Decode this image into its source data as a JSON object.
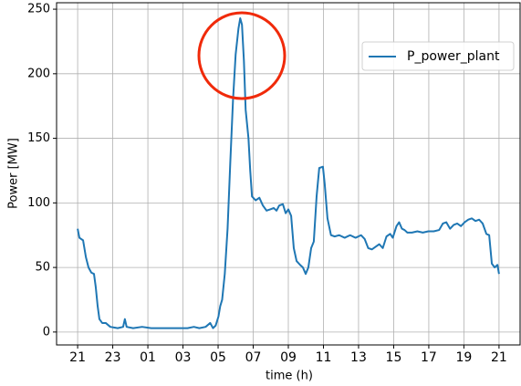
{
  "chart_data": {
    "type": "line",
    "xlabel": "time (h)",
    "ylabel": "Power [MW]",
    "x": [
      21.0,
      21.1,
      21.31,
      21.47,
      21.62,
      21.78,
      21.93,
      22.03,
      22.14,
      22.24,
      22.4,
      22.6,
      22.86,
      23.28,
      23.59,
      23.69,
      23.79,
      24.16,
      24.67,
      25.19,
      25.71,
      26.23,
      26.74,
      27.26,
      27.62,
      27.93,
      28.29,
      28.55,
      28.71,
      28.86,
      29.02,
      29.12,
      29.23,
      29.38,
      29.54,
      29.69,
      29.85,
      30.0,
      30.16,
      30.26,
      30.36,
      30.47,
      30.57,
      30.73,
      30.83,
      30.93,
      31.14,
      31.35,
      31.55,
      31.76,
      31.97,
      32.17,
      32.33,
      32.48,
      32.69,
      32.85,
      33.0,
      33.16,
      33.31,
      33.47,
      33.67,
      33.83,
      33.99,
      34.14,
      34.3,
      34.45,
      34.61,
      34.76,
      34.97,
      35.07,
      35.23,
      35.43,
      35.64,
      35.9,
      36.21,
      36.52,
      36.83,
      37.14,
      37.35,
      37.55,
      37.76,
      37.97,
      38.18,
      38.38,
      38.59,
      38.8,
      38.95,
      39.16,
      39.31,
      39.47,
      39.62,
      39.78,
      40.04,
      40.35,
      40.66,
      40.97,
      41.28,
      41.59,
      41.8,
      42.0,
      42.21,
      42.42,
      42.62,
      42.83,
      43.04,
      43.25,
      43.45,
      43.66,
      43.87,
      44.07,
      44.28,
      44.44,
      44.59,
      44.75,
      44.91,
      45.0
    ],
    "series": [
      {
        "name": "P_power_plant",
        "color": "#1f77b4",
        "values": [
          80,
          73,
          71,
          58,
          50,
          46,
          45,
          35,
          20,
          10,
          7,
          7,
          4,
          3,
          4,
          10,
          4,
          3,
          4,
          3,
          3,
          3,
          3,
          3,
          4,
          3,
          4,
          7,
          3,
          5,
          12,
          20,
          25,
          45,
          80,
          130,
          180,
          215,
          235,
          243,
          238,
          210,
          172,
          150,
          125,
          105,
          102,
          104,
          98,
          94,
          95,
          96,
          94,
          98,
          99,
          92,
          95,
          90,
          65,
          55,
          52,
          50,
          45,
          50,
          65,
          70,
          105,
          127,
          128,
          115,
          88,
          75,
          74,
          75,
          73,
          75,
          73,
          75,
          72,
          65,
          64,
          66,
          68,
          65,
          74,
          76,
          73,
          82,
          85,
          80,
          79,
          77,
          77,
          78,
          77,
          78,
          78,
          79,
          84,
          85,
          80,
          83,
          84,
          82,
          85,
          87,
          88,
          86,
          87,
          84,
          76,
          75,
          53,
          50,
          52,
          45
        ]
      }
    ],
    "xlim": [
      19.8,
      46.2
    ],
    "ylim": [
      -10,
      255
    ],
    "xticks": [
      21,
      23,
      {
        "value": 25,
        "label": "01"
      },
      {
        "value": 27,
        "label": "03"
      },
      {
        "value": 29,
        "label": "05"
      },
      {
        "value": 31,
        "label": "07"
      },
      {
        "value": 33,
        "label": "09"
      },
      {
        "value": 35,
        "label": "11"
      },
      {
        "value": 37,
        "label": "13"
      },
      {
        "value": 39,
        "label": "15"
      },
      {
        "value": 41,
        "label": "17"
      },
      {
        "value": 43,
        "label": "19"
      },
      {
        "value": 45,
        "label": "21"
      }
    ],
    "yticks": [
      0,
      50,
      100,
      150,
      200,
      250
    ],
    "grid": true,
    "legend": "upper right"
  }
}
